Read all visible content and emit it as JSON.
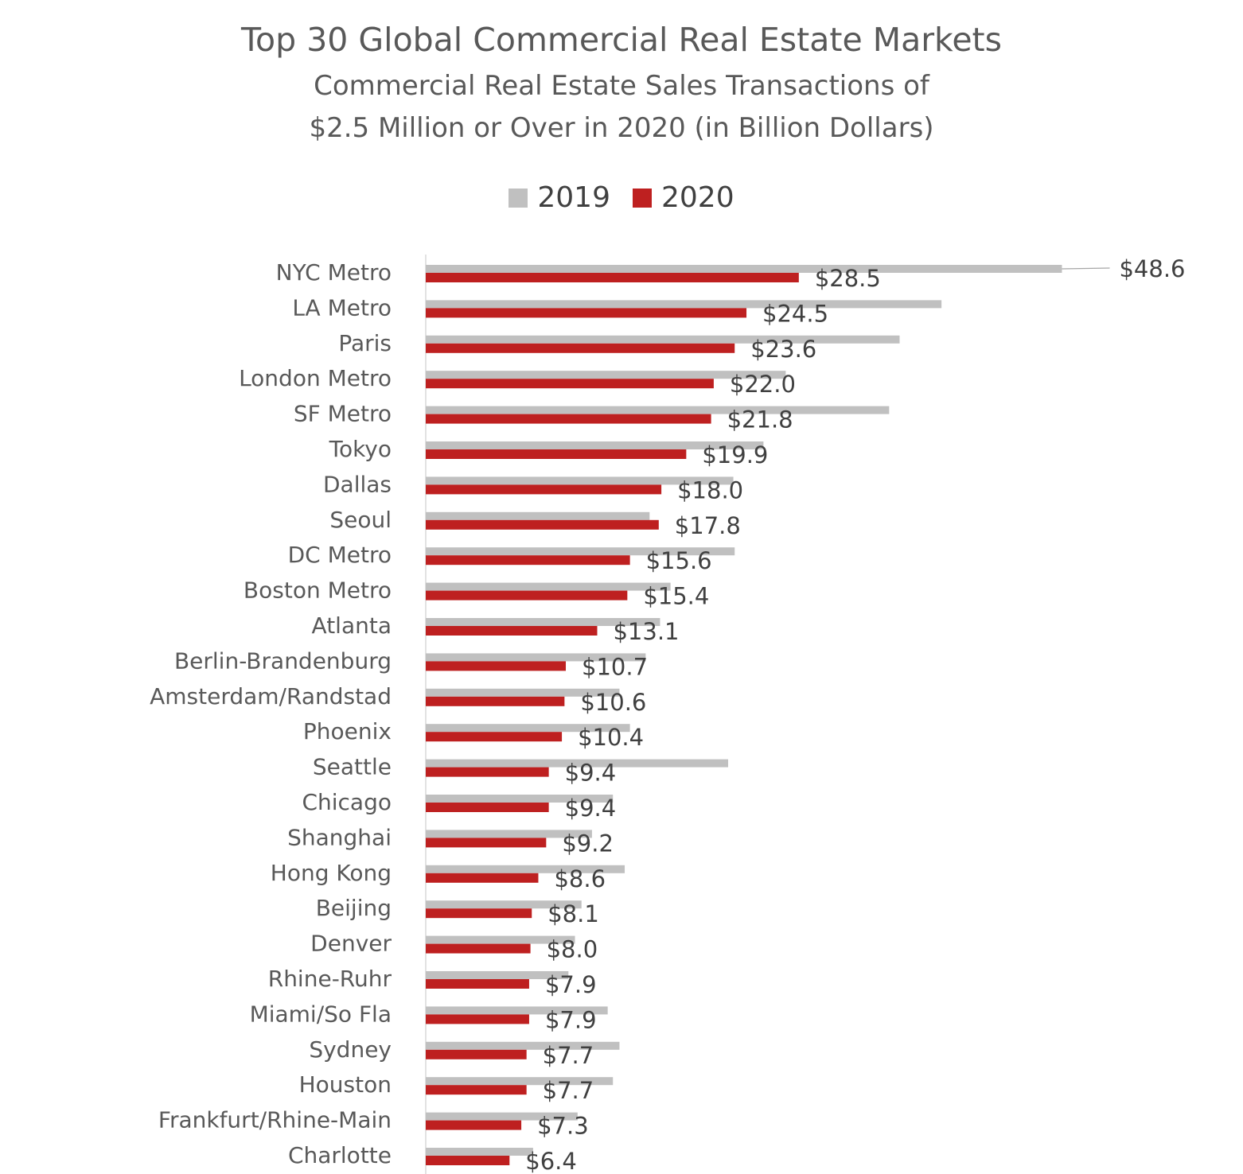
{
  "chart_data": {
    "type": "bar",
    "orientation": "horizontal",
    "title": "Top 30 Global Commercial Real Estate Markets",
    "subtitle_line1": "Commercial Real Estate Sales Transactions of",
    "subtitle_line2": "$2.5 Million or Over in 2020 (in Billion Dollars)",
    "legend_position": "top",
    "grid": false,
    "categories": [
      "NYC Metro",
      "LA Metro",
      "Paris",
      "London Metro",
      "SF Metro",
      "Tokyo",
      "Dallas",
      "Seoul",
      "DC Metro",
      "Boston Metro",
      "Atlanta",
      "Berlin-Brandenburg",
      "Amsterdam/Randstad",
      "Phoenix",
      "Seattle",
      "Chicago",
      "Shanghai",
      "Hong Kong",
      "Beijing",
      "Denver",
      "Rhine-Ruhr",
      "Miami/So Fla",
      "Sydney",
      "Houston",
      "Frankfurt/Rhine-Main",
      "Charlotte"
    ],
    "series": [
      {
        "name": "2019",
        "color": "#C0C0C0",
        "values": [
          48.6,
          39.4,
          36.2,
          27.5,
          35.4,
          25.8,
          23.5,
          17.1,
          23.6,
          18.7,
          17.9,
          16.8,
          14.8,
          15.6,
          23.1,
          14.3,
          12.7,
          15.2,
          11.9,
          11.4,
          10.9,
          13.9,
          14.8,
          14.3,
          11.6,
          8.2
        ]
      },
      {
        "name": "2020",
        "color": "#BE2020",
        "values": [
          28.5,
          24.5,
          23.6,
          22.0,
          21.8,
          19.9,
          18.0,
          17.8,
          15.6,
          15.4,
          13.1,
          10.7,
          10.6,
          10.4,
          9.4,
          9.4,
          9.2,
          8.6,
          8.1,
          8.0,
          7.9,
          7.9,
          7.7,
          7.7,
          7.3,
          6.4
        ]
      }
    ],
    "value_labels": [
      "$28.5",
      "$24.5",
      "$23.6",
      "$22.0",
      "$21.8",
      "$19.9",
      "$18.0",
      "$17.8",
      "$15.6",
      "$15.4",
      "$13.1",
      "$10.7",
      "$10.6",
      "$10.4",
      "$9.4",
      "$9.4",
      "$9.2",
      "$8.6",
      "$8.1",
      "$8.0",
      "$7.9",
      "$7.9",
      "$7.7",
      "$7.7",
      "$7.3",
      "$6.4"
    ],
    "callout_label": "$48.6"
  }
}
